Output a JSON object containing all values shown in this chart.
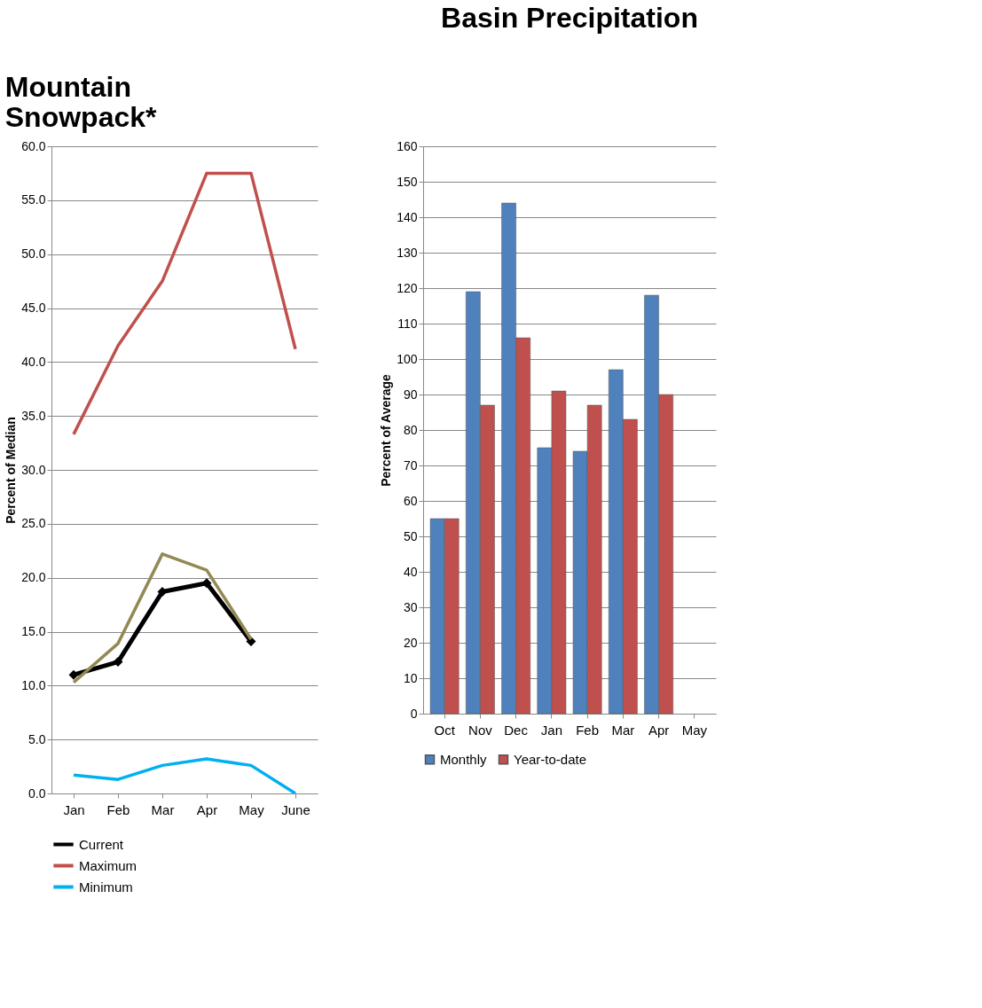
{
  "chart_data": [
    {
      "type": "line",
      "title": "Mountain Snowpack*",
      "ylabel": "Percent of Median",
      "categories": [
        "Jan",
        "Feb",
        "Mar",
        "Apr",
        "May",
        "June"
      ],
      "ylim": [
        0,
        60
      ],
      "yticks": [
        {
          "value": 0,
          "label": "0.0"
        },
        {
          "value": 5,
          "label": "5.0"
        },
        {
          "value": 10,
          "label": "10.0"
        },
        {
          "value": 15,
          "label": "15.0"
        },
        {
          "value": 20,
          "label": "20.0"
        },
        {
          "value": 25,
          "label": "25.0"
        },
        {
          "value": 30,
          "label": "30.0"
        },
        {
          "value": 35,
          "label": "35.0"
        },
        {
          "value": 40,
          "label": "40.0"
        },
        {
          "value": 45,
          "label": "45.0"
        },
        {
          "value": 50,
          "label": "50.0"
        },
        {
          "value": 55,
          "label": "55.0"
        },
        {
          "value": 60,
          "label": "60.0"
        }
      ],
      "grid": "y",
      "legend": "bottom",
      "line_style": "solid",
      "series": [
        {
          "name": "Current",
          "color": "#000000",
          "marker": "diamond",
          "values": [
            11.0,
            12.2,
            18.7,
            19.5,
            14.1,
            null
          ]
        },
        {
          "name": "Maximum",
          "color": "#c0504d",
          "marker": "none",
          "values": [
            33.3,
            41.5,
            47.5,
            57.5,
            57.5,
            41.2
          ]
        },
        {
          "name": "Minimum",
          "color": "#00b0f0",
          "marker": "none",
          "values": [
            1.7,
            1.3,
            2.6,
            3.2,
            2.6,
            0.0
          ]
        },
        {
          "color": "#938953",
          "marker": "none",
          "values": [
            10.3,
            13.9,
            22.2,
            20.7,
            14.3,
            null
          ]
        }
      ]
    },
    {
      "type": "bar",
      "title": "Basin Precipitation",
      "ylabel": "Percent of Average",
      "categories": [
        "Oct",
        "Nov",
        "Dec",
        "Jan",
        "Feb",
        "Mar",
        "Apr",
        "May"
      ],
      "ylim": [
        0,
        160
      ],
      "yticks": [
        0,
        10,
        20,
        30,
        40,
        50,
        60,
        70,
        80,
        90,
        100,
        110,
        120,
        130,
        140,
        150,
        160
      ],
      "grid": "y",
      "legend": "bottom",
      "series": [
        {
          "name": "Monthly",
          "color": "#4f81bd",
          "values": [
            55,
            119,
            144,
            75,
            74,
            97,
            118,
            null
          ]
        },
        {
          "name": "Year-to-date",
          "color": "#c0504d",
          "values": [
            55,
            87,
            106,
            91,
            87,
            83,
            90,
            null
          ]
        }
      ]
    }
  ]
}
